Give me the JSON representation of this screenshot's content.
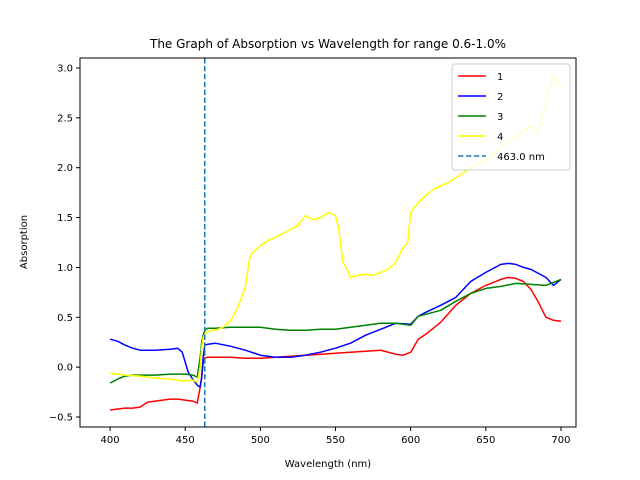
{
  "chart_data": {
    "type": "line",
    "title": "The Graph of Absorption vs Wavelength  for range 0.6-1.0%",
    "xlabel": "Wavelength (nm)",
    "ylabel": "Absorption",
    "xlim": [
      380,
      710
    ],
    "ylim": [
      -0.6,
      3.1
    ],
    "xticks": [
      400,
      450,
      500,
      550,
      600,
      650,
      700
    ],
    "yticks": [
      -0.5,
      0.0,
      0.5,
      1.0,
      1.5,
      2.0,
      2.5,
      3.0
    ],
    "xtick_labels": [
      "400",
      "450",
      "500",
      "550",
      "600",
      "650",
      "700"
    ],
    "ytick_labels": [
      "−0.5",
      "0.0",
      "0.5",
      "1.0",
      "1.5",
      "2.0",
      "2.5",
      "3.0"
    ],
    "grid": false,
    "legend_position": "top-right",
    "vline": {
      "x": 463.0,
      "label": "463.0 nm",
      "color": "#1f77b4",
      "style": "dashed"
    },
    "series": [
      {
        "name": "1",
        "color": "#ff0000",
        "x": [
          400,
          405,
          410,
          415,
          420,
          425,
          430,
          435,
          440,
          445,
          450,
          455,
          458,
          460,
          461,
          462,
          463,
          465,
          470,
          480,
          490,
          500,
          510,
          520,
          530,
          540,
          550,
          560,
          570,
          580,
          590,
          595,
          600,
          605,
          610,
          620,
          630,
          640,
          650,
          660,
          665,
          670,
          675,
          680,
          685,
          690,
          695,
          700
        ],
        "y": [
          -0.43,
          -0.42,
          -0.41,
          -0.41,
          -0.4,
          -0.35,
          -0.34,
          -0.33,
          -0.32,
          -0.32,
          -0.33,
          -0.34,
          -0.36,
          -0.2,
          -0.1,
          0.05,
          0.09,
          0.1,
          0.1,
          0.1,
          0.09,
          0.09,
          0.1,
          0.11,
          0.12,
          0.13,
          0.14,
          0.15,
          0.16,
          0.17,
          0.13,
          0.12,
          0.15,
          0.28,
          0.33,
          0.45,
          0.62,
          0.74,
          0.82,
          0.88,
          0.9,
          0.89,
          0.86,
          0.78,
          0.65,
          0.5,
          0.47,
          0.46
        ]
      },
      {
        "name": "2",
        "color": "#0000ff",
        "x": [
          400,
          405,
          410,
          415,
          420,
          430,
          440,
          445,
          448,
          450,
          452,
          455,
          458,
          460,
          461,
          462,
          463,
          465,
          470,
          480,
          490,
          500,
          510,
          520,
          530,
          540,
          550,
          560,
          570,
          580,
          590,
          600,
          605,
          610,
          620,
          630,
          640,
          650,
          660,
          665,
          670,
          675,
          680,
          690,
          695,
          700
        ],
        "y": [
          0.28,
          0.26,
          0.22,
          0.19,
          0.17,
          0.17,
          0.18,
          0.19,
          0.15,
          0.05,
          -0.05,
          -0.12,
          -0.18,
          -0.2,
          -0.1,
          0.1,
          0.22,
          0.23,
          0.24,
          0.21,
          0.17,
          0.12,
          0.1,
          0.1,
          0.12,
          0.15,
          0.19,
          0.24,
          0.32,
          0.38,
          0.44,
          0.43,
          0.51,
          0.55,
          0.62,
          0.7,
          0.86,
          0.95,
          1.03,
          1.04,
          1.03,
          1.0,
          0.98,
          0.9,
          0.82,
          0.88
        ]
      },
      {
        "name": "3",
        "color": "#008000",
        "x": [
          400,
          405,
          410,
          415,
          420,
          430,
          440,
          450,
          455,
          458,
          460,
          461,
          462,
          463,
          465,
          470,
          480,
          490,
          500,
          510,
          520,
          530,
          540,
          550,
          560,
          570,
          580,
          590,
          600,
          605,
          610,
          620,
          630,
          640,
          650,
          660,
          670,
          680,
          690,
          700
        ],
        "y": [
          -0.16,
          -0.12,
          -0.09,
          -0.08,
          -0.08,
          -0.08,
          -0.07,
          -0.07,
          -0.08,
          -0.1,
          0.1,
          0.25,
          0.32,
          0.37,
          0.39,
          0.39,
          0.4,
          0.4,
          0.4,
          0.38,
          0.37,
          0.37,
          0.38,
          0.38,
          0.4,
          0.42,
          0.44,
          0.44,
          0.42,
          0.51,
          0.53,
          0.57,
          0.66,
          0.74,
          0.79,
          0.81,
          0.84,
          0.83,
          0.82,
          0.88
        ]
      },
      {
        "name": "4",
        "color": "#ffff00",
        "x": [
          400,
          405,
          410,
          420,
          430,
          440,
          450,
          455,
          458,
          460,
          461,
          462,
          463,
          465,
          470,
          475,
          480,
          485,
          490,
          493,
          495,
          500,
          505,
          510,
          515,
          520,
          525,
          530,
          535,
          540,
          545,
          550,
          552,
          555,
          558,
          560,
          565,
          570,
          575,
          580,
          585,
          590,
          595,
          598,
          600,
          605,
          610,
          615,
          620,
          625,
          630,
          640,
          650,
          660,
          670,
          680,
          685,
          690,
          695,
          700
        ],
        "y": [
          -0.06,
          -0.07,
          -0.08,
          -0.09,
          -0.11,
          -0.12,
          -0.14,
          -0.13,
          -0.15,
          0.0,
          0.2,
          0.3,
          0.33,
          0.36,
          0.37,
          0.4,
          0.46,
          0.6,
          0.8,
          1.1,
          1.15,
          1.22,
          1.27,
          1.3,
          1.34,
          1.38,
          1.42,
          1.52,
          1.48,
          1.5,
          1.55,
          1.52,
          1.4,
          1.05,
          0.97,
          0.9,
          0.92,
          0.93,
          0.92,
          0.95,
          0.98,
          1.05,
          1.2,
          1.25,
          1.55,
          1.65,
          1.72,
          1.78,
          1.82,
          1.85,
          1.9,
          2.0,
          2.08,
          2.2,
          2.32,
          2.42,
          2.35,
          2.65,
          2.93,
          2.8
        ]
      }
    ]
  }
}
